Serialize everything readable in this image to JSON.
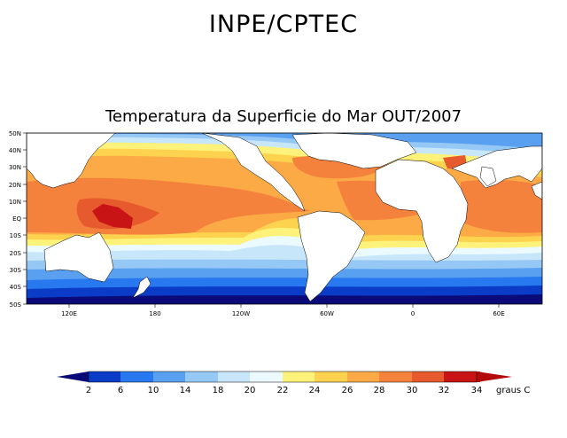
{
  "header": {
    "organization": "INPE/CPTEC"
  },
  "map": {
    "title": "Temperatura da Superficie do Mar OUT/2007",
    "lat_labels": [
      "50N",
      "40N",
      "30N",
      "20N",
      "10N",
      "EQ",
      "10S",
      "20S",
      "30S",
      "40S",
      "50S"
    ],
    "lon_labels": [
      "120E",
      "180",
      "120W",
      "60W",
      "0",
      "60E"
    ]
  },
  "colorbar": {
    "unit_label": "graus C",
    "ticks": [
      "2",
      "6",
      "10",
      "14",
      "18",
      "20",
      "22",
      "24",
      "26",
      "28",
      "30",
      "32",
      "34"
    ],
    "colors": [
      "#0a0a78",
      "#0a3cc8",
      "#2878f0",
      "#5aa0f0",
      "#96c8f5",
      "#c8e6fa",
      "#ebfaff",
      "#fff27a",
      "#fdd24e",
      "#fbaa46",
      "#f5823c",
      "#e65a2d",
      "#c81414",
      "#aa0000",
      "#b40a0a"
    ]
  }
}
